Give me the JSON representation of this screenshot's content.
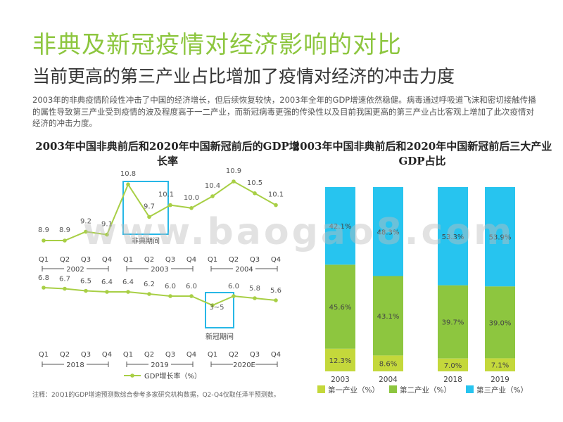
{
  "title": "非典及新冠疫情对经济影响的对比",
  "subtitle": "当前更高的第三产业占比增加了疫情对经济的冲击力度",
  "intro": "2003年的非典疫情阶段性冲击了中国的经济增长，但后续恢复较快，2003年全年的GDP增速依然稳健。病毒通过呼吸道飞沫和密切接触传播的属性导致第三产业受到疫情的波及程度高于一二产业，而新冠病毒更强的传染性以及目前我国更高的第三产业占比客观上增加了此次疫情对经济的冲击力度。",
  "note": "注释：20Q1的GDP增速预测数综合参考多家研究机构数据，Q2-Q4仅取任泽平预测数。",
  "watermark": "www.baogao8.com",
  "colors": {
    "green": "#8dc63f",
    "line": "#a8cf45",
    "secondary": "#8dc63f",
    "primary": "#c4d83b",
    "tertiary": "#27c4ef",
    "highlight": "#27b7e6"
  },
  "chart_data": [
    {
      "type": "line",
      "title": "2003年中国非典前后和2020年中国新冠前后的GDP增长率",
      "legend": "GDP增长率（%）",
      "panels": [
        {
          "quarters": [
            "Q1",
            "Q2",
            "Q3",
            "Q4",
            "Q1",
            "Q2",
            "Q3",
            "Q4",
            "Q1",
            "Q2",
            "Q3",
            "Q4"
          ],
          "years": [
            "2002",
            "2003",
            "2004"
          ],
          "values": [
            8.9,
            8.9,
            9.2,
            9.1,
            10.8,
            9.7,
            10.1,
            10.0,
            10.4,
            10.9,
            10.5,
            10.1
          ],
          "labels": [
            "8.9",
            "8.9",
            "9.2",
            "9.1",
            "10.8",
            "9.7",
            "10.1",
            "10.0",
            "10.4",
            "10.9",
            "10.5",
            "10.1"
          ],
          "highlight": {
            "start": 4,
            "end": 5,
            "label": "非典期间"
          }
        },
        {
          "quarters": [
            "Q1",
            "Q2",
            "Q3",
            "Q4",
            "Q1",
            "Q2",
            "Q3",
            "Q4",
            "Q1",
            "Q2",
            "Q3",
            "Q4"
          ],
          "years": [
            "2018",
            "2019",
            "2020E"
          ],
          "values": [
            6.8,
            6.7,
            6.5,
            6.4,
            6.4,
            6.2,
            6.0,
            6.0,
            4.0,
            6.0,
            5.8,
            5.6
          ],
          "labels": [
            "6.8",
            "6.7",
            "6.5",
            "6.4",
            "6.4",
            "6.2",
            "6.0",
            "6.0",
            "3~5",
            "6.0",
            "5.8",
            "5.6"
          ],
          "highlight": {
            "start": 8,
            "end": 8,
            "label": "新冠期间"
          }
        }
      ]
    },
    {
      "type": "bar",
      "stacked": true,
      "title": "2003年中国非典前后和2020年中国新冠前后三大产业GDP占比",
      "categories": [
        "2003",
        "2004",
        "2018",
        "2019"
      ],
      "ylim": [
        0,
        100
      ],
      "series": [
        {
          "name": "第一产业（%）",
          "values": [
            12.3,
            8.6,
            7.0,
            7.1
          ],
          "labels": [
            "12.3%",
            "8.6%",
            "7.0%",
            "7.1%"
          ]
        },
        {
          "name": "第二产业（%）",
          "values": [
            45.6,
            43.1,
            39.7,
            39.0
          ],
          "labels": [
            "45.6%",
            "43.1%",
            "39.7%",
            "39.0%"
          ]
        },
        {
          "name": "第三产业（%）",
          "values": [
            42.1,
            48.3,
            53.3,
            53.9
          ],
          "labels": [
            "42.1%",
            "48.3%",
            "53.3%",
            "53.9%"
          ]
        }
      ]
    }
  ]
}
